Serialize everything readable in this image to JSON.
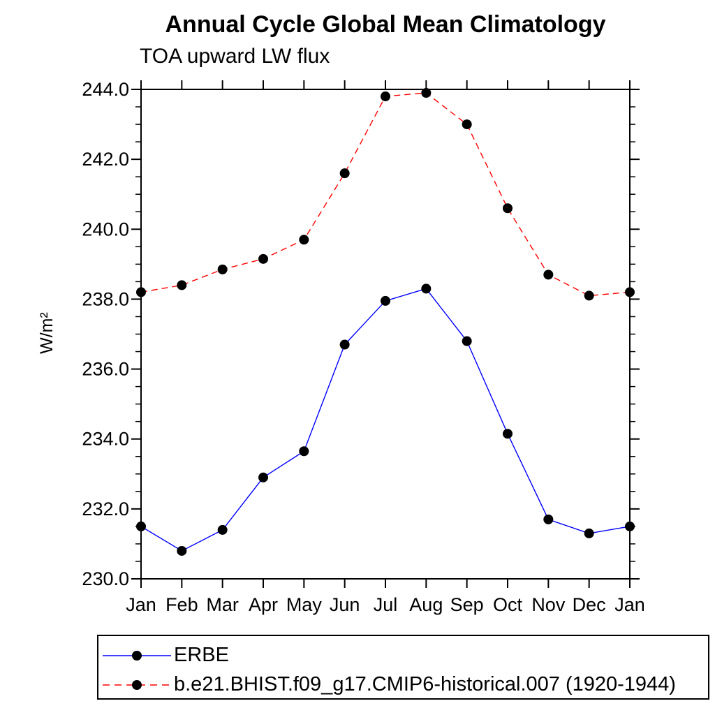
{
  "chart_data": {
    "type": "line",
    "title": "Annual Cycle Global Mean Climatology",
    "subtitle": "TOA upward LW flux",
    "ylabel": "W/m²",
    "xlabel": "",
    "categories": [
      "Jan",
      "Feb",
      "Mar",
      "Apr",
      "May",
      "Jun",
      "Jul",
      "Aug",
      "Sep",
      "Oct",
      "Nov",
      "Dec",
      "Jan"
    ],
    "ylim": [
      230.0,
      244.0
    ],
    "y_tick_step": 2.0,
    "y_minor_step": 0.5,
    "y_tick_labels": [
      "230.0",
      "232.0",
      "234.0",
      "236.0",
      "238.0",
      "240.0",
      "242.0",
      "244.0"
    ],
    "grid": false,
    "legend_position": "boxed, below plot, bottom-left",
    "axis_color": "#000000",
    "series": [
      {
        "name": "ERBE",
        "color": "#0000ff",
        "line_style": "solid",
        "marker": "filled-circle",
        "marker_color": "#000000",
        "values": [
          231.5,
          230.8,
          231.4,
          232.9,
          233.65,
          236.7,
          237.95,
          238.3,
          236.8,
          234.15,
          231.7,
          231.3,
          231.5
        ]
      },
      {
        "name": "b.e21.BHIST.f09_g17.CMIP6-historical.007 (1920-1944)",
        "color": "#ff0000",
        "line_style": "dashed",
        "marker": "filled-circle",
        "marker_color": "#000000",
        "values": [
          238.2,
          238.4,
          238.85,
          239.15,
          239.7,
          241.6,
          243.8,
          243.9,
          243.0,
          240.6,
          238.7,
          238.1,
          238.2
        ]
      }
    ]
  }
}
